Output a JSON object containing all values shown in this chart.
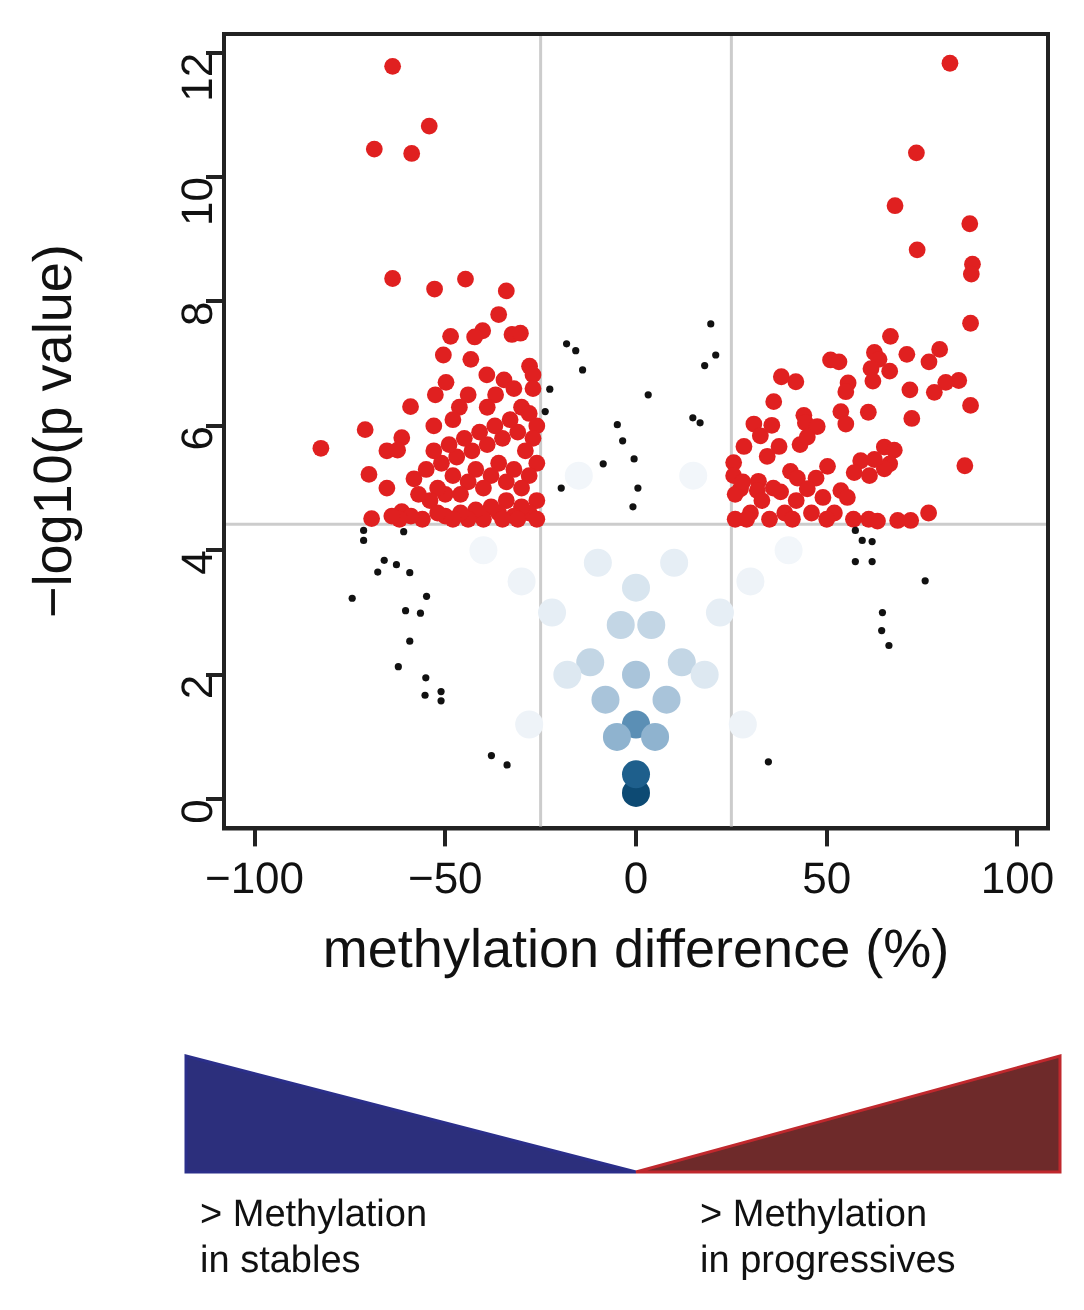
{
  "chart_data": {
    "type": "scatter",
    "xlabel": "methylation difference (%)",
    "ylabel": "−log10(p value)",
    "xlim": [
      -108,
      108
    ],
    "xticks": [
      {
        "value": -100,
        "label": "−100"
      },
      {
        "value": -50,
        "label": "−50"
      },
      0,
      50,
      100
    ],
    "ylim": [
      -0.47,
      12.3
    ],
    "yticks": [
      0,
      2,
      4,
      6,
      8,
      10,
      12
    ],
    "grid": false,
    "legend": false,
    "marker": "circle",
    "ref_lines": [
      {
        "axis": "x",
        "value": -25,
        "color": "#cccccc"
      },
      {
        "axis": "x",
        "value": 25,
        "color": "#cccccc"
      },
      {
        "axis": "y",
        "value": 4.42,
        "color": "#cccccc"
      }
    ],
    "series": [
      {
        "colors": [
          "#0d4a73",
          "#1e5f8c",
          "#5b8fb5",
          "#8fb3cf",
          "#8fb3cf",
          "#a9c4da",
          "#a9c4da",
          "#a9c4da",
          "#c3d6e5",
          "#c3d6e5",
          "#c3d6e5",
          "#c3d6e5",
          "#d8e5ef",
          "#dde8f1",
          "#dde8f1",
          "#e6eef5",
          "#e6eef5",
          "#e6eef5",
          "#e6eef5",
          "#eef3f8",
          "#eef3f8",
          "#f2f6fa",
          "#f2f6fa",
          "#f2f6fa",
          "#f2f6fa",
          "#eef3f8",
          "#eef3f8"
        ],
        "x": [
          0,
          0,
          0,
          -5,
          5,
          -8,
          8,
          0,
          -12,
          12,
          -4,
          4,
          0,
          -18,
          18,
          -22,
          22,
          -10,
          10,
          -30,
          30,
          -40,
          40,
          -15,
          15,
          -28,
          28
        ],
        "values": [
          0.1,
          0.4,
          1.2,
          1.0,
          1.0,
          1.6,
          1.6,
          2.0,
          2.2,
          2.2,
          2.8,
          2.8,
          3.4,
          2.0,
          2.0,
          3.0,
          3.0,
          3.8,
          3.8,
          3.5,
          3.5,
          4.0,
          4.0,
          5.2,
          5.2,
          1.2,
          1.2
        ]
      },
      {
        "color": "#e02020",
        "x": [
          -63.8,
          -54.2,
          -68.6,
          -58.8,
          -63.8,
          -52.8,
          -44.7,
          -34,
          -36,
          -40.2,
          -42.3,
          -48.6,
          -32.5,
          -30.3,
          -50.5,
          -43.3,
          -27.9,
          -27,
          -39.1,
          -34.6,
          -49.8,
          -32,
          -52.6,
          -36.8,
          -59.1,
          -46.3,
          -71,
          -82.6,
          -61.4,
          -65.3,
          -62.5,
          -70,
          -65.3,
          -58.2,
          -61.4,
          -69.3,
          -30,
          -28,
          -26,
          -27,
          -29,
          -31,
          -33,
          -35,
          -37,
          -39,
          -41,
          -43,
          -45,
          -47,
          -49,
          -51,
          -53,
          -55,
          -26,
          -28,
          -30,
          -32,
          -34,
          -36,
          -38,
          -40,
          -42,
          -44,
          -46,
          -48,
          -50,
          -52,
          -54,
          -57,
          -26,
          -28,
          -30,
          -32,
          -34,
          -36,
          -38,
          -40,
          -42,
          -44,
          -46,
          -48,
          -50,
          -52,
          -56,
          -59,
          -62,
          -64,
          -26,
          -27,
          -31,
          -35,
          -39,
          -44,
          -48,
          -53,
          82.3,
          73.5,
          67.9,
          87.5,
          73.7,
          88.2,
          87.9,
          87.7,
          66.7,
          79.6,
          71,
          76.8,
          62.5,
          63.7,
          51,
          53.2,
          66.5,
          61.6,
          62.1,
          84.6,
          81.2,
          55.6,
          55,
          38.1,
          41.9,
          71.8,
          78.2,
          60.9,
          36.1,
          87.7,
          53.7,
          55,
          44,
          44.4,
          72.3,
          30.9,
          32.6,
          35.6,
          47.5,
          28.3,
          37.5,
          43,
          44.9,
          65.1,
          67.7,
          66.5,
          65.1,
          86.2,
          34.4,
          58.9,
          62.5,
          25.6,
          25.6,
          40.5,
          50.2,
          57.2,
          61.2,
          42.3,
          47.2,
          32.1,
          27.4,
          31.8,
          37.9,
          44.9,
          53.7,
          55.4,
          76.7,
          63.3,
          68.6,
          72,
          26,
          28,
          30,
          33,
          36,
          39,
          42,
          46,
          49,
          52,
          26,
          29,
          35,
          41,
          50,
          57,
          61
        ],
        "values": [
          11.78,
          10.82,
          10.45,
          10.38,
          8.37,
          8.2,
          8.36,
          8.17,
          7.79,
          7.53,
          7.43,
          7.44,
          7.47,
          7.49,
          7.14,
          7.07,
          6.96,
          6.82,
          6.82,
          6.74,
          6.7,
          6.6,
          6.5,
          6.5,
          6.31,
          6.3,
          5.94,
          5.64,
          5.81,
          5.6,
          5.61,
          5.22,
          5.0,
          5.15,
          4.62,
          4.51,
          6.3,
          6.2,
          6.0,
          5.8,
          5.6,
          5.9,
          6.1,
          5.8,
          6.0,
          5.7,
          5.9,
          5.6,
          5.8,
          5.5,
          5.7,
          5.4,
          5.6,
          5.3,
          5.4,
          5.2,
          5.0,
          5.3,
          5.1,
          5.4,
          5.2,
          5.0,
          5.3,
          5.1,
          4.9,
          5.2,
          4.9,
          5.0,
          4.8,
          4.9,
          4.8,
          4.6,
          4.7,
          4.55,
          4.8,
          4.6,
          4.7,
          4.5,
          4.65,
          4.5,
          4.6,
          4.5,
          4.55,
          4.6,
          4.5,
          4.55,
          4.5,
          4.55,
          4.5,
          6.6,
          4.5,
          4.5,
          6.3,
          6.5,
          6.1,
          6.0,
          11.83,
          10.39,
          9.54,
          9.25,
          8.83,
          8.6,
          8.44,
          7.65,
          7.44,
          7.23,
          7.15,
          7.03,
          7.18,
          7.07,
          7.06,
          7.03,
          6.88,
          6.92,
          6.72,
          6.73,
          6.7,
          6.69,
          6.55,
          6.79,
          6.71,
          6.58,
          6.54,
          6.22,
          6.39,
          6.33,
          6.23,
          6.03,
          6.17,
          6.05,
          6.12,
          6.03,
          5.84,
          6.01,
          5.99,
          5.67,
          5.67,
          5.7,
          5.82,
          5.66,
          5.61,
          5.39,
          5.31,
          5.36,
          5.51,
          5.44,
          5.46,
          5.41,
          5.2,
          5.27,
          5.35,
          5.25,
          5.2,
          5.16,
          5.16,
          5.11,
          4.99,
          4.96,
          4.94,
          4.99,
          4.96,
          4.85,
          4.6,
          4.47,
          4.48,
          4.48,
          4.9,
          5.1,
          4.6,
          4.8,
          5.0,
          4.6,
          4.8,
          4.6,
          4.85,
          4.6,
          4.5,
          4.5,
          4.5,
          4.5,
          4.5,
          4.5,
          4.5
        ]
      },
      {
        "color": "#111111",
        "x": [
          -18.2,
          -15.8,
          -14,
          -22.6,
          -23.8,
          -4.9,
          -3.5,
          -8.6,
          -0.5,
          -19.6,
          -0.8,
          0.5,
          19.6,
          20.9,
          18,
          3.2,
          14.9,
          16.8,
          -71.4,
          -71.4,
          -60.9,
          -66,
          -67.7,
          -62.8,
          -59.3,
          -74.4,
          -60.4,
          -56.5,
          -54.9,
          -59.3,
          -62.3,
          -55.1,
          -51.1,
          -51.1,
          -55.3,
          -37.9,
          -33.8,
          34.7,
          57.5,
          59.3,
          61.9,
          57.5,
          61.9,
          75.8,
          64.6,
          64.4,
          66.3
        ],
        "values": [
          7.32,
          7.21,
          6.9,
          6.59,
          6.23,
          6.02,
          5.76,
          5.39,
          5.47,
          5.0,
          4.7,
          5.0,
          7.64,
          7.14,
          6.97,
          6.5,
          6.13,
          6.05,
          4.32,
          4.16,
          4.3,
          3.84,
          3.65,
          3.77,
          3.64,
          3.23,
          3.03,
          2.99,
          3.26,
          2.54,
          2.13,
          1.95,
          1.73,
          1.58,
          1.67,
          0.7,
          0.55,
          0.6,
          4.32,
          4.16,
          4.14,
          3.82,
          3.82,
          3.51,
          3.0,
          2.71,
          2.47
        ]
      }
    ],
    "annotations": [
      "> Methylation\nin stables",
      "> Methylation\nin progressives"
    ]
  }
}
